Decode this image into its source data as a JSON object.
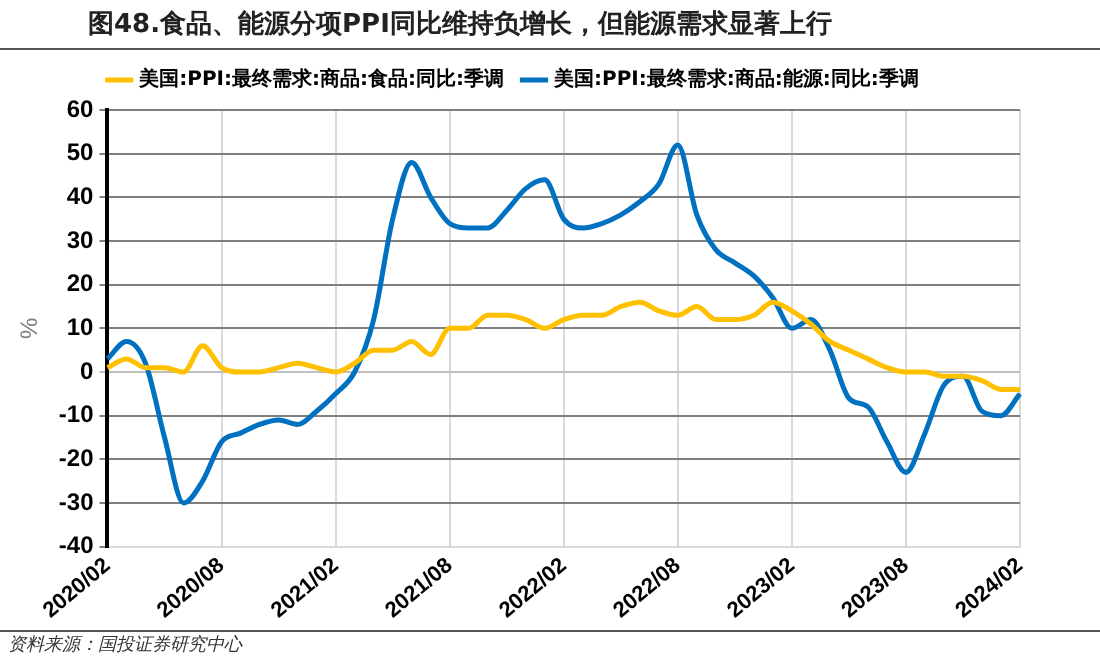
{
  "chart_data": {
    "type": "line",
    "title": "图48.食品、能源分项PPI同比维持负增长，但能源需求显著上行",
    "ylabel": "%",
    "annotations": [
      "资料来源：国投证券研究中心"
    ],
    "categories": [
      "2020/02",
      null,
      null,
      null,
      null,
      null,
      "2020/08",
      null,
      null,
      null,
      null,
      null,
      "2021/02",
      null,
      null,
      null,
      null,
      null,
      "2021/08",
      null,
      null,
      null,
      null,
      null,
      "2022/02",
      null,
      null,
      null,
      null,
      null,
      "2022/08",
      null,
      null,
      null,
      null,
      null,
      "2023/02",
      null,
      null,
      null,
      null,
      null,
      "2023/08",
      null,
      null,
      null,
      null,
      null,
      "2024/02"
    ],
    "series": [
      {
        "name": "美国:PPI:最终需求:商品:食品:同比:季调",
        "color": "#ffc000",
        "values": [
          1,
          3,
          1,
          1,
          0,
          6,
          1,
          0,
          0,
          1,
          2,
          1,
          0,
          2,
          5,
          5,
          7,
          4,
          10,
          10,
          13,
          13,
          12,
          10,
          12,
          13,
          13,
          15,
          16,
          14,
          13,
          15,
          12,
          12,
          13,
          16,
          14,
          11,
          7,
          5,
          3,
          1,
          0,
          0,
          -1,
          -1,
          -2,
          -4,
          -4
        ]
      },
      {
        "name": "美国:PPI:最终需求:商品:能源:同比:季调",
        "color": "#0070c0",
        "values": [
          3,
          7,
          2,
          -15,
          -30,
          -25,
          -16,
          -14,
          -12,
          -11,
          -12,
          -9,
          -5,
          0,
          12,
          35,
          48,
          40,
          34,
          33,
          33,
          37,
          42,
          44,
          35,
          33,
          34,
          36,
          39,
          43,
          52,
          36,
          28,
          25,
          22,
          17,
          10,
          12,
          5,
          -6,
          -8,
          -16,
          -23,
          -14,
          -3,
          -1,
          -9,
          -10,
          -5
        ]
      }
    ],
    "ylim": [
      -40,
      60
    ],
    "yticks": [
      -40,
      -30,
      -20,
      -10,
      0,
      10,
      20,
      30,
      40,
      50,
      60
    ],
    "grid": true,
    "legend": "top",
    "marker": "none",
    "line_style": "solid"
  }
}
